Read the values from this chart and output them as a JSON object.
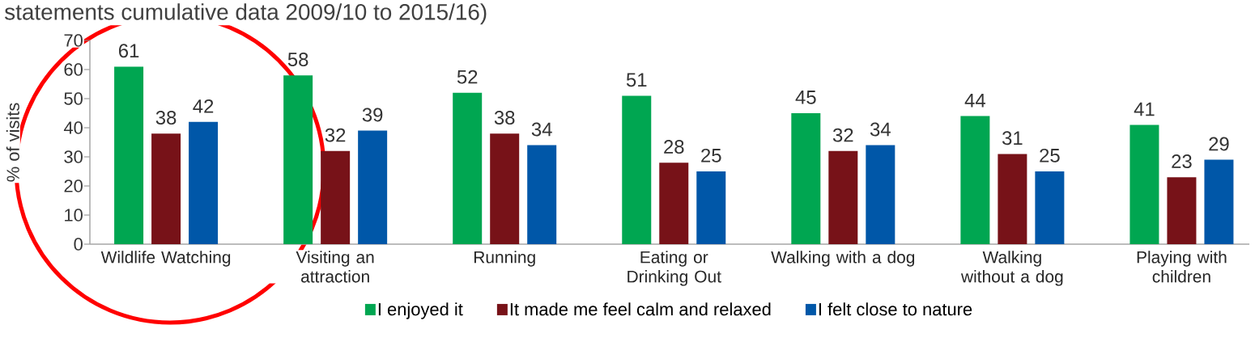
{
  "chart_data": {
    "type": "bar",
    "title": "statements cumulative data 2009/10 to 2015/16)",
    "ylabel": "% of visits",
    "categories": [
      "Wildlife Watching",
      "Visiting an attraction",
      "Running",
      "Eating or Drinking Out",
      "Walking with a dog",
      "Walking without a dog",
      "Playing with children"
    ],
    "series": [
      {
        "name": "I enjoyed it",
        "color": "#00a651",
        "values": [
          61,
          58,
          52,
          51,
          45,
          44,
          41
        ]
      },
      {
        "name": "It made me feel calm and relaxed",
        "color": "#771218",
        "values": [
          38,
          32,
          38,
          28,
          32,
          31,
          23
        ]
      },
      {
        "name": "I felt close to nature",
        "color": "#0057a8",
        "values": [
          42,
          39,
          34,
          25,
          34,
          25,
          29
        ]
      }
    ],
    "ylim": [
      0,
      70
    ],
    "yticks": [
      0,
      10,
      20,
      30,
      40,
      50,
      60,
      70
    ],
    "data_labels": true,
    "legend": "bottom"
  }
}
